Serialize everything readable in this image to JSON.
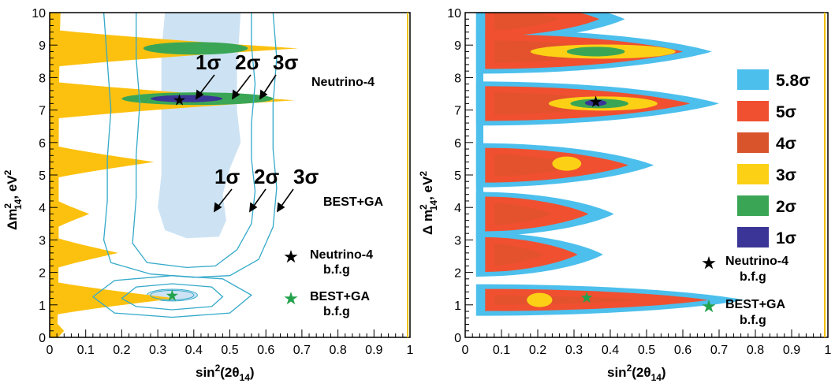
{
  "chart_data": [
    {
      "type": "contour",
      "panel": "left",
      "xlabel": "sin²(2θ₁₄)",
      "xlabel_main": "sin",
      "xlabel_sup": "2",
      "xlabel_paren": "(2θ",
      "xlabel_sub": "14",
      "xlabel_close": ")",
      "ylabel": "Δm²₁₄, eV²",
      "ylabel_main": "Δm",
      "ylabel_sup": "2",
      "ylabel_sub": "14",
      "ylabel_unit": ", eV",
      "ylabel_unit_sup": "2",
      "xlim": [
        0,
        1
      ],
      "ylim": [
        0,
        10
      ],
      "x_ticks": [
        "0",
        "0.1",
        "0.2",
        "0.3",
        "0.4",
        "0.5",
        "0.6",
        "0.7",
        "0.8",
        "0.9",
        "1"
      ],
      "y_ticks": [
        "0",
        "1",
        "2",
        "3",
        "4",
        "5",
        "6",
        "7",
        "8",
        "9",
        "10"
      ],
      "colors": {
        "yellow": "#fcc10f",
        "green": "#3aa655",
        "purple": "#3a3596",
        "lightblue": "#cde3f3",
        "contour": "#33a9c9",
        "black": "#000000",
        "star_green": "#23a24d"
      },
      "neutrino4_allowed_regions_3sigma": [
        {
          "y": 0.2,
          "x_max": 0.04
        },
        {
          "y": 1.2,
          "x_max": 0.35
        },
        {
          "y": 2.6,
          "x_max": 0.19
        },
        {
          "y": 3.8,
          "x_max": 0.11
        },
        {
          "y": 5.4,
          "x_max": 0.29
        },
        {
          "y": 7.3,
          "x_max": 0.68
        },
        {
          "y": 8.9,
          "x_max": 0.69
        }
      ],
      "neutrino4_2sigma_regions": [
        {
          "y": 7.35,
          "x_range": [
            0.2,
            0.62
          ]
        },
        {
          "y": 8.9,
          "x_range": [
            0.26,
            0.55
          ]
        }
      ],
      "neutrino4_1sigma_region": {
        "y": 7.35,
        "x_range": [
          0.28,
          0.48
        ]
      },
      "best_ga_1sigma_band": {
        "x_range": [
          0.3,
          0.55
        ],
        "y_range": [
          3.0,
          10
        ]
      },
      "best_ga_contours": [
        "1σ",
        "2σ",
        "3σ"
      ],
      "best_fit_points": [
        {
          "name": "Neutrino-4 b.f.g",
          "x": 0.36,
          "y": 7.3,
          "marker": "black-star"
        },
        {
          "name": "BEST+GA b.f.g",
          "x": 0.34,
          "y": 1.28,
          "marker": "green-star"
        }
      ],
      "annotations": {
        "n4_sigmas": [
          "1σ",
          "2σ",
          "3σ"
        ],
        "best_sigmas": [
          "1σ",
          "2σ",
          "3σ"
        ],
        "neutrino4": "Neutrino-4",
        "bestga": "BEST+GA",
        "legend_n4_line1": "Neutrino-4",
        "legend_n4_line2": "b.f.g",
        "legend_best_line1": "BEST+GA",
        "legend_best_line2": "b.f.g"
      }
    },
    {
      "type": "contour",
      "panel": "right",
      "xlabel_main": "sin",
      "xlabel_sup": "2",
      "xlabel_paren": "(2θ",
      "xlabel_sub": "14",
      "xlabel_close": ")",
      "ylabel_main": "Δ m",
      "ylabel_sup": "2",
      "ylabel_sub": "14",
      "ylabel_unit": ", eV",
      "ylabel_unit_sup": "2",
      "xlim": [
        0,
        1
      ],
      "ylim": [
        0,
        10
      ],
      "x_ticks": [
        "0",
        "0.1",
        "0.2",
        "0.3",
        "0.4",
        "0.5",
        "0.6",
        "0.7",
        "0.8",
        "0.9",
        "1"
      ],
      "y_ticks": [
        "0",
        "1",
        "2",
        "3",
        "4",
        "5",
        "6",
        "7",
        "8",
        "9",
        "10"
      ],
      "legend": [
        {
          "label": "5.8σ",
          "color": "#4cbfec"
        },
        {
          "label": "5σ",
          "color": "#f05030"
        },
        {
          "label": "4σ",
          "color": "#d9542b"
        },
        {
          "label": "3σ",
          "color": "#fcd115"
        },
        {
          "label": "2σ",
          "color": "#3aa655"
        },
        {
          "label": "1σ",
          "color": "#3a3596"
        }
      ],
      "islands": [
        {
          "y": 1.15,
          "x_max": 0.77,
          "r5": 0.67
        },
        {
          "y": 2.55,
          "x_max": 0.38,
          "r5": 0.31
        },
        {
          "y": 3.8,
          "x_max": 0.41,
          "r5": 0.34
        },
        {
          "y": 5.3,
          "x_max": 0.52,
          "r5": 0.45
        },
        {
          "y": 7.2,
          "x_max": 0.7,
          "r5": 0.62
        },
        {
          "y": 8.8,
          "x_max": 0.68,
          "r5": 0.6
        },
        {
          "y": 9.8,
          "x_max": 0.44,
          "r5": 0.37
        }
      ],
      "inner_regions": [
        {
          "y": 7.2,
          "sigma": "3σ",
          "x_range": [
            0.23,
            0.53
          ]
        },
        {
          "y": 7.2,
          "sigma": "2σ",
          "x_range": [
            0.29,
            0.45
          ]
        },
        {
          "y": 7.22,
          "sigma": "1σ",
          "x_range": [
            0.33,
            0.39
          ]
        },
        {
          "y": 8.8,
          "sigma": "3σ",
          "x_range": [
            0.18,
            0.58
          ]
        },
        {
          "y": 8.8,
          "sigma": "2σ",
          "x_range": [
            0.28,
            0.44
          ]
        },
        {
          "y": 5.35,
          "sigma": "3σ",
          "x_range": [
            0.24,
            0.32
          ]
        },
        {
          "y": 1.15,
          "sigma": "3σ",
          "x_range": [
            0.17,
            0.24
          ]
        }
      ],
      "best_fit_points": [
        {
          "name": "Neutrino-4 b.f.g",
          "x": 0.36,
          "y": 7.25,
          "marker": "black-star"
        },
        {
          "name": "BEST+GA b.f.g",
          "x": 0.335,
          "y": 1.22,
          "marker": "green-star"
        }
      ],
      "annotations": {
        "legend_n4_line1": "Neutrino-4",
        "legend_n4_line2": "b.f.g",
        "legend_best_line1": "BEST+GA",
        "legend_best_line2": "b.f.g"
      }
    }
  ]
}
